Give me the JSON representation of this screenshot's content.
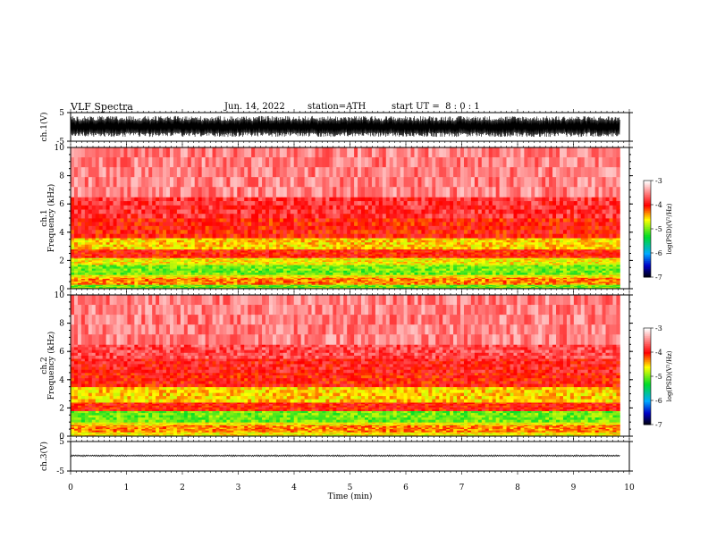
{
  "header": {
    "title": "VLF Spectra",
    "date": "Jun. 14, 2022",
    "station": "station=ATH",
    "start_ut": "start UT =  8 : 0 : 1"
  },
  "chart_data": {
    "type": "heatmap",
    "xlabel": "Time (min)",
    "x_ticks": [
      "0",
      "1",
      "2",
      "3",
      "4",
      "5",
      "6",
      "7",
      "8",
      "9",
      "10"
    ],
    "xlim": [
      0,
      10
    ],
    "data_end_min": 9.83,
    "panels": [
      {
        "id": "ch1-waveform",
        "type": "line",
        "ylabel": "ch.1(V)",
        "ylim": [
          -5,
          5
        ],
        "y_ticks": [
          "5",
          "-5"
        ],
        "amplitude_band": [
          -3.5,
          3.8
        ]
      },
      {
        "id": "ch1-spectrum",
        "type": "heatmap",
        "ylabel_top": "ch.1",
        "ylabel": "Frequency (kHz)",
        "ylim": [
          0,
          10
        ],
        "y_ticks": [
          "0",
          "2",
          "4",
          "6",
          "8",
          "10"
        ],
        "colorbar": {
          "label": "log(PSD)(V²/Hz)",
          "range": [
            -7,
            -3
          ],
          "ticks": [
            "-3",
            "-4",
            "-5",
            "-6",
            "-7"
          ]
        },
        "frequency_bands": [
          {
            "from": 0.0,
            "to": 0.3,
            "log_psd": -5.0
          },
          {
            "from": 0.3,
            "to": 0.8,
            "log_psd": -4.3
          },
          {
            "from": 0.8,
            "to": 1.0,
            "log_psd": -4.6
          },
          {
            "from": 1.0,
            "to": 1.7,
            "log_psd": -5.0
          },
          {
            "from": 1.7,
            "to": 2.2,
            "log_psd": -4.6
          },
          {
            "from": 2.2,
            "to": 2.8,
            "log_psd": -4.0
          },
          {
            "from": 2.8,
            "to": 3.6,
            "log_psd": -4.5
          },
          {
            "from": 3.6,
            "to": 5.0,
            "log_psd": -4.0
          },
          {
            "from": 5.0,
            "to": 6.5,
            "log_psd": -3.8
          },
          {
            "from": 6.5,
            "to": 10.0,
            "log_psd": -3.5
          }
        ]
      },
      {
        "id": "ch2-spectrum",
        "type": "heatmap",
        "ylabel_top": "ch.2",
        "ylabel": "Frequency (kHz)",
        "ylim": [
          0,
          10
        ],
        "y_ticks": [
          "0",
          "2",
          "4",
          "6",
          "8",
          "10"
        ],
        "colorbar": {
          "label": "log(PSD)(V²/Hz)",
          "range": [
            -7,
            -3
          ],
          "ticks": [
            "-3",
            "-4",
            "-5",
            "-6",
            "-7"
          ]
        },
        "frequency_bands": [
          {
            "from": 0.0,
            "to": 0.3,
            "log_psd": -4.6
          },
          {
            "from": 0.3,
            "to": 0.8,
            "log_psd": -4.3
          },
          {
            "from": 0.8,
            "to": 1.0,
            "log_psd": -4.6
          },
          {
            "from": 1.0,
            "to": 1.8,
            "log_psd": -5.0
          },
          {
            "from": 1.8,
            "to": 2.4,
            "log_psd": -4.0
          },
          {
            "from": 2.4,
            "to": 3.5,
            "log_psd": -4.5
          },
          {
            "from": 3.5,
            "to": 4.5,
            "log_psd": -4.0
          },
          {
            "from": 4.5,
            "to": 5.5,
            "log_psd": -3.9
          },
          {
            "from": 5.5,
            "to": 6.5,
            "log_psd": -3.7
          },
          {
            "from": 6.5,
            "to": 10.0,
            "log_psd": -3.5
          }
        ]
      },
      {
        "id": "ch3-waveform",
        "type": "line",
        "ylabel": "ch.3(V)",
        "ylim": [
          -5,
          5
        ],
        "y_ticks": [
          "5",
          "-5"
        ],
        "amplitude_band": [
          -0.3,
          0.3
        ],
        "offset": 0.2
      }
    ]
  }
}
